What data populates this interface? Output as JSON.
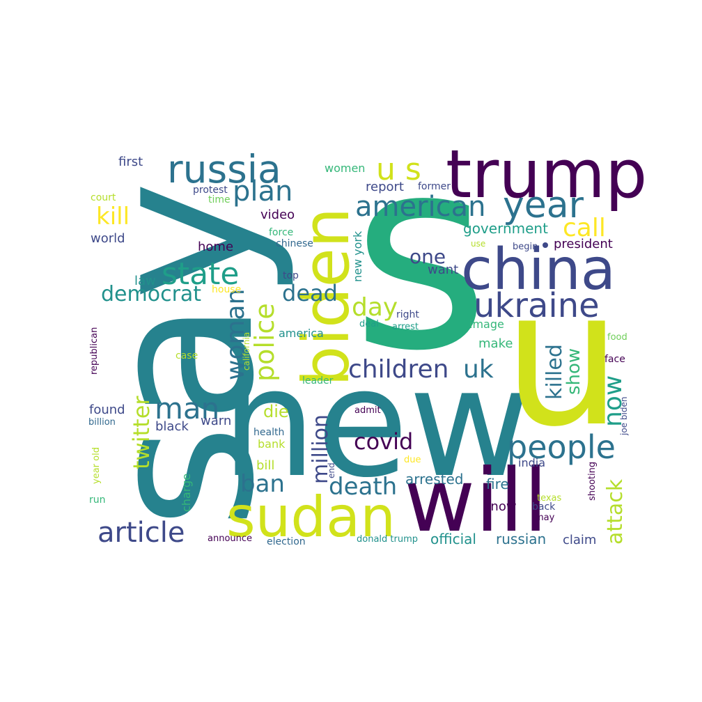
{
  "word_cloud": {
    "colors": [
      "#440154",
      "#482878",
      "#3e4989",
      "#31688e",
      "#26828e",
      "#1f9e89",
      "#35b779",
      "#6ece58",
      "#b5de2b",
      "#fde725"
    ],
    "words": [
      {
        "text": "say",
        "color": "#26828e"
      },
      {
        "text": "s",
        "color": "#25ad7e"
      },
      {
        "text": "new",
        "color": "#26828e"
      },
      {
        "text": "u",
        "color": "#d1e21b"
      },
      {
        "text": "will",
        "color": "#440154"
      },
      {
        "text": "trump",
        "color": "#440154"
      },
      {
        "text": "sudan",
        "color": "#d1e21b"
      },
      {
        "text": "biden",
        "color": "#d1e21b"
      },
      {
        "text": "china",
        "color": "#3e4989"
      },
      {
        "text": "russia",
        "color": "#2c728e"
      },
      {
        "text": "ukraine",
        "color": "#3e4989"
      },
      {
        "text": "people",
        "color": "#2c728e"
      },
      {
        "text": "year",
        "color": "#2c728e"
      },
      {
        "text": "american",
        "color": "#2c728e"
      },
      {
        "text": "article",
        "color": "#3e4989"
      },
      {
        "text": "state",
        "color": "#1f9e89"
      },
      {
        "text": "man",
        "color": "#2c728e"
      },
      {
        "text": "u s",
        "color": "#d1e21b"
      },
      {
        "text": "children",
        "color": "#3e4989"
      },
      {
        "text": "uk",
        "color": "#2c728e"
      },
      {
        "text": "police",
        "color": "#b5de2b"
      },
      {
        "text": "woman",
        "color": "#2c728e"
      },
      {
        "text": "plan",
        "color": "#2c728e"
      },
      {
        "text": "call",
        "color": "#fde725"
      },
      {
        "text": "democrat",
        "color": "#21918c"
      },
      {
        "text": "day",
        "color": "#b5de2b"
      },
      {
        "text": "dead",
        "color": "#2c728e"
      },
      {
        "text": "death",
        "color": "#2c728e"
      },
      {
        "text": "covid",
        "color": "#440154"
      },
      {
        "text": "ban",
        "color": "#2c728e"
      },
      {
        "text": "now",
        "color": "#1f9e89"
      },
      {
        "text": "killed",
        "color": "#2c728e"
      },
      {
        "text": "twitter",
        "color": "#b5de2b"
      },
      {
        "text": "kill",
        "color": "#fde725"
      },
      {
        "text": "million",
        "color": "#3e4989"
      },
      {
        "text": "attack",
        "color": "#b5de2b"
      },
      {
        "text": "show",
        "color": "#35b779"
      },
      {
        "text": "one",
        "color": "#3e4989"
      },
      {
        "text": "government",
        "color": "#1f9e89"
      },
      {
        "text": "report",
        "color": "#3e4989"
      },
      {
        "text": "women",
        "color": "#35b779"
      },
      {
        "text": "die",
        "color": "#b5de2b"
      },
      {
        "text": "first",
        "color": "#3e4989"
      },
      {
        "text": "world",
        "color": "#3e4989"
      },
      {
        "text": "video",
        "color": "#440154"
      },
      {
        "text": "home",
        "color": "#440154"
      },
      {
        "text": "president",
        "color": "#440154"
      },
      {
        "text": "arrested",
        "color": "#2c728e"
      },
      {
        "text": "found",
        "color": "#3e4989"
      },
      {
        "text": "black",
        "color": "#3e4989"
      },
      {
        "text": "warn",
        "color": "#3e4989"
      },
      {
        "text": "fire",
        "color": "#2c728e"
      },
      {
        "text": "official",
        "color": "#21918c"
      },
      {
        "text": "russian",
        "color": "#2c728e"
      },
      {
        "text": "claim",
        "color": "#3e4989"
      },
      {
        "text": "india",
        "color": "#3e4989"
      },
      {
        "text": "bank",
        "color": "#b5de2b"
      },
      {
        "text": "bill",
        "color": "#b5de2b"
      },
      {
        "text": "want",
        "color": "#3e4989"
      },
      {
        "text": "image",
        "color": "#35b779"
      },
      {
        "text": "make",
        "color": "#35b779"
      },
      {
        "text": "america",
        "color": "#21918c"
      },
      {
        "text": "law",
        "color": "#21918c"
      },
      {
        "text": "know",
        "color": "#440154"
      },
      {
        "text": "new york",
        "color": "#21918c"
      },
      {
        "text": "charge",
        "color": "#35b779"
      },
      {
        "text": "protest",
        "color": "#3e4989"
      },
      {
        "text": "time",
        "color": "#6ece58"
      },
      {
        "text": "former",
        "color": "#3e4989"
      },
      {
        "text": "court",
        "color": "#b5de2b"
      },
      {
        "text": "force",
        "color": "#35b779"
      },
      {
        "text": "chinese",
        "color": "#31688e"
      },
      {
        "text": "use",
        "color": "#b5de2b"
      },
      {
        "text": "begin",
        "color": "#3e4989"
      },
      {
        "text": "house",
        "color": "#fde725"
      },
      {
        "text": "top",
        "color": "#3e4989"
      },
      {
        "text": "right",
        "color": "#3e4989"
      },
      {
        "text": "deal",
        "color": "#1f9e89"
      },
      {
        "text": "arrest",
        "color": "#1f9e89"
      },
      {
        "text": "republican",
        "color": "#440154"
      },
      {
        "text": "california",
        "color": "#b5de2b"
      },
      {
        "text": "case",
        "color": "#b5de2b"
      },
      {
        "text": "leader",
        "color": "#35b779"
      },
      {
        "text": "food",
        "color": "#6ece58"
      },
      {
        "text": "face",
        "color": "#440154"
      },
      {
        "text": "joe biden",
        "color": "#3e4989"
      },
      {
        "text": "billion",
        "color": "#31688e"
      },
      {
        "text": "admit",
        "color": "#440154"
      },
      {
        "text": "health",
        "color": "#31688e"
      },
      {
        "text": "year old",
        "color": "#b5de2b"
      },
      {
        "text": "end",
        "color": "#3e4989"
      },
      {
        "text": "due",
        "color": "#fde725"
      },
      {
        "text": "shooting",
        "color": "#440154"
      },
      {
        "text": "run",
        "color": "#35b779"
      },
      {
        "text": "texas",
        "color": "#b5de2b"
      },
      {
        "text": "back",
        "color": "#3e4989"
      },
      {
        "text": "may",
        "color": "#440154"
      },
      {
        "text": "announce",
        "color": "#440154"
      },
      {
        "text": "election",
        "color": "#31688e"
      },
      {
        "text": "donald trump",
        "color": "#21918c"
      }
    ]
  }
}
